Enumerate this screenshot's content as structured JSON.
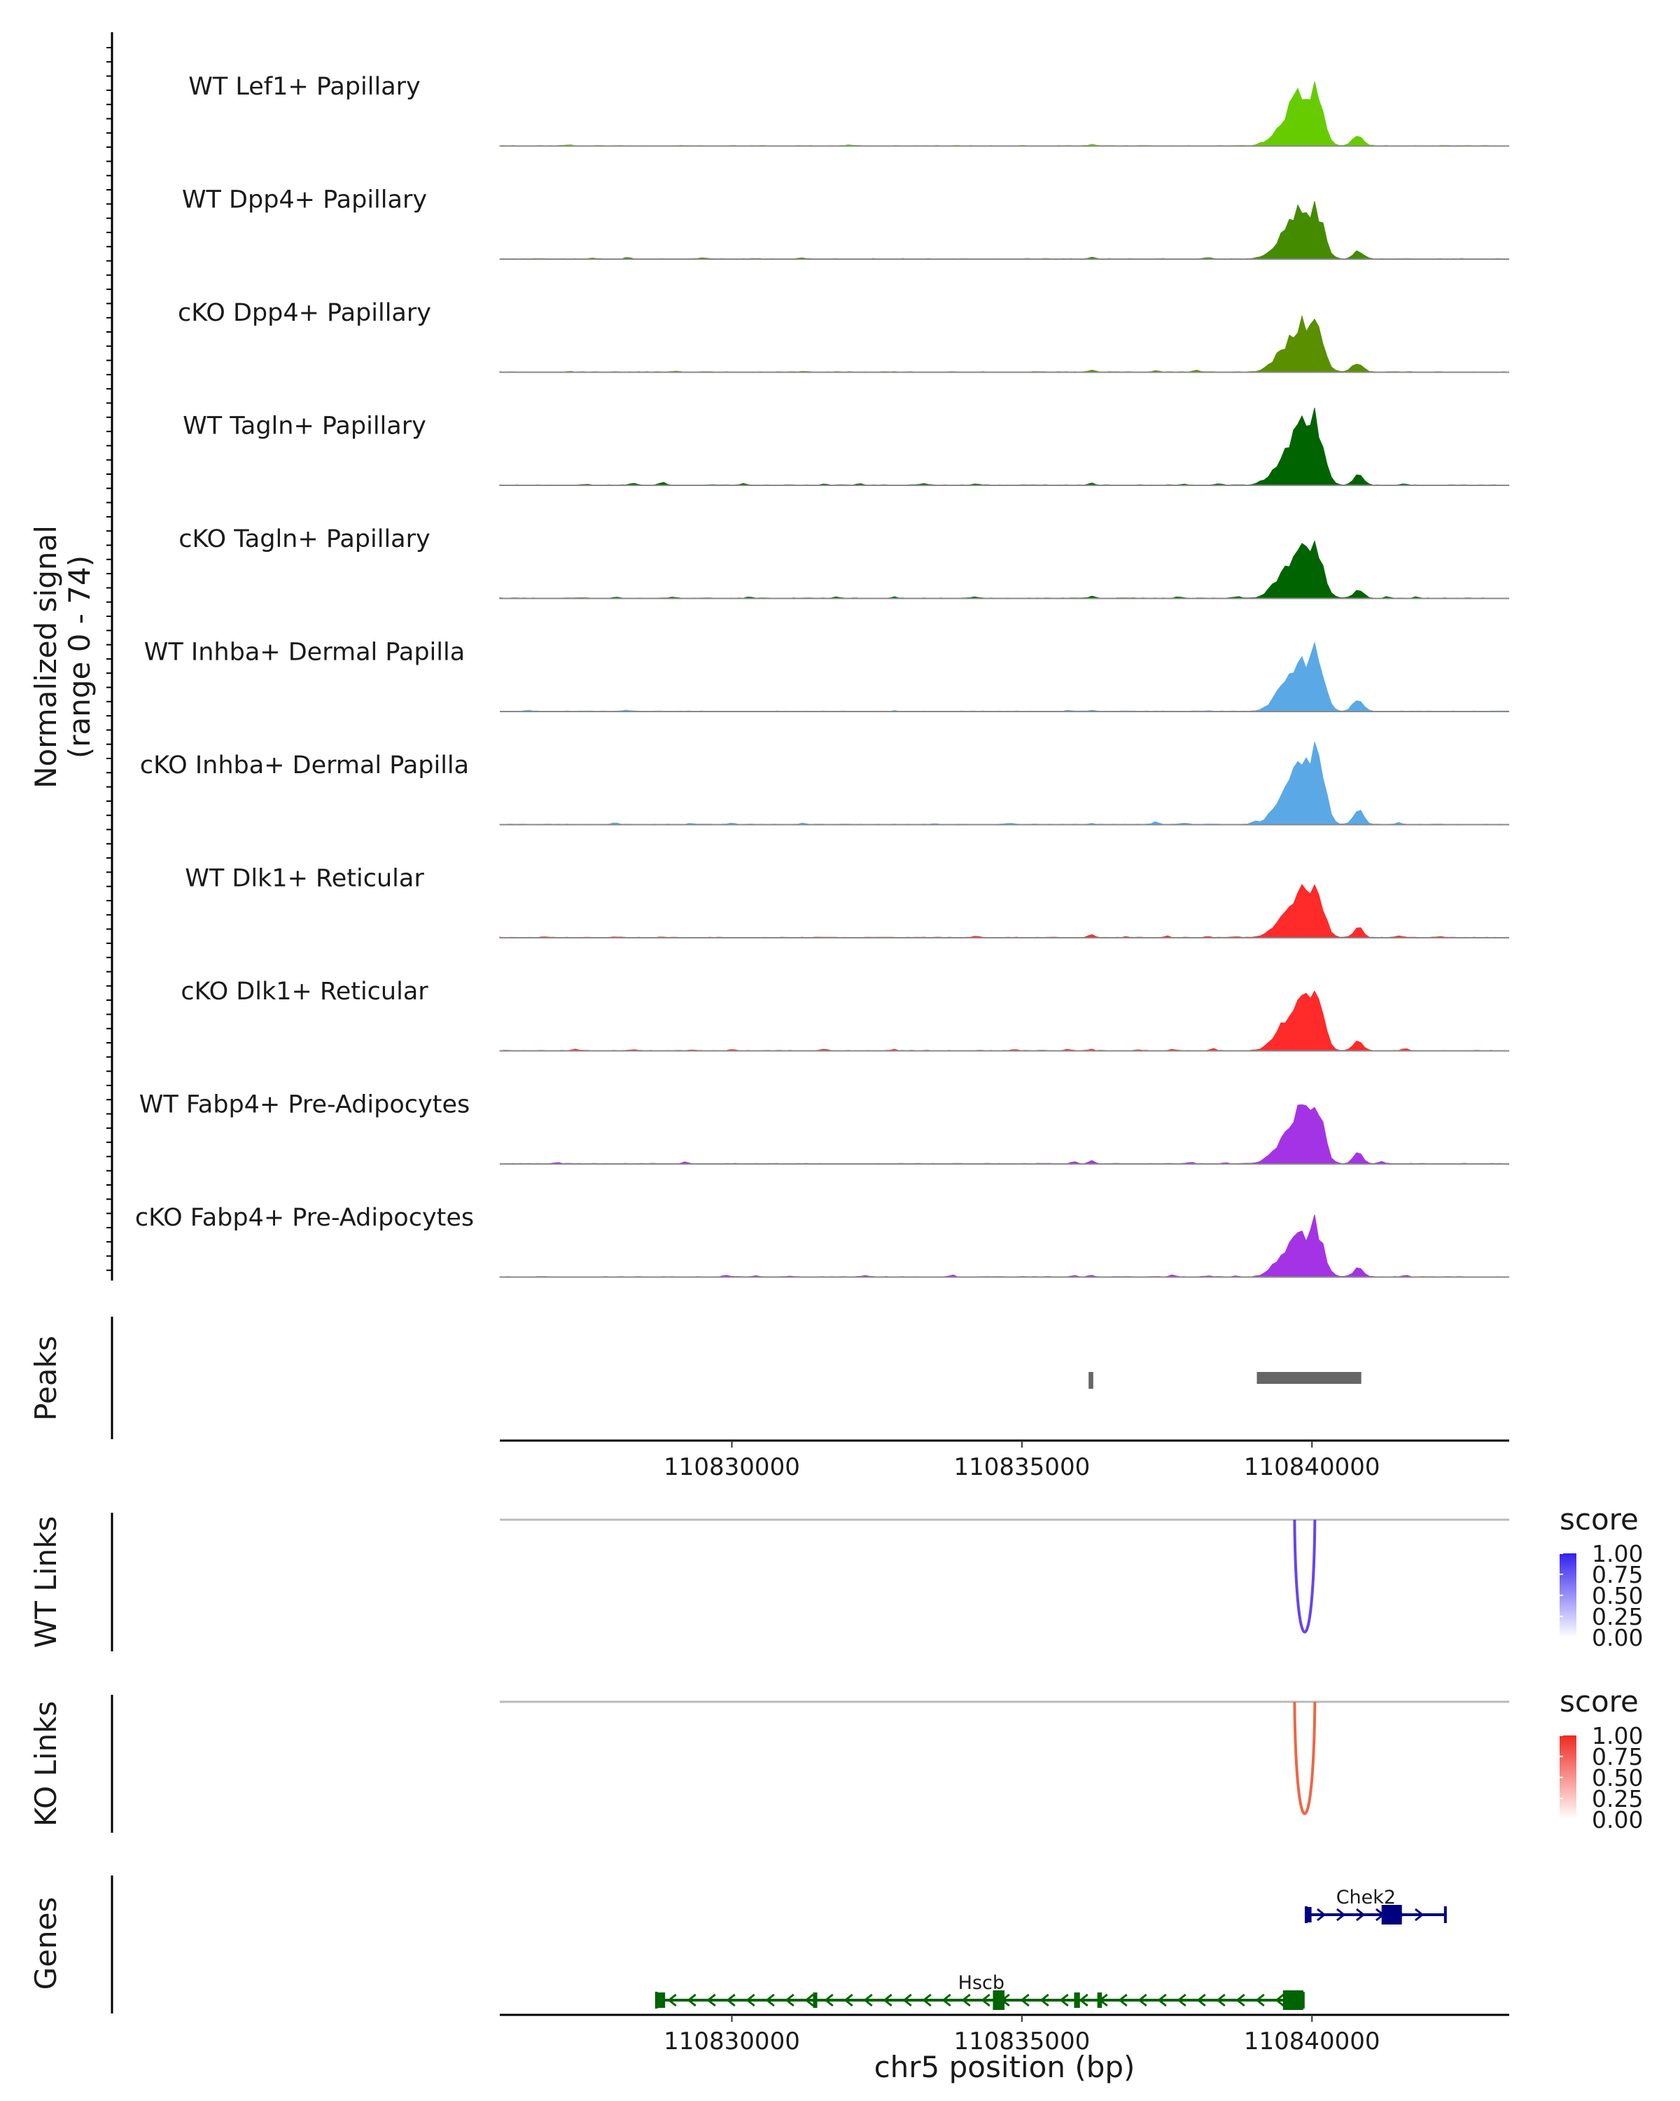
{
  "chart_data": {
    "type": "area",
    "genome_region": {
      "chromosome": "chr5",
      "xlim": [
        110826000,
        110843400
      ]
    },
    "coverage_ylabel": "Normalized signal",
    "coverage_ylabel_range": "(range 0 - 74)",
    "coverage_yrange": [
      0,
      74
    ],
    "x_ticks": [
      110830000,
      110835000,
      110840000
    ],
    "x_tick_labels": [
      "110830000",
      "110835000",
      "110840000"
    ],
    "xlabel": "chr5 position (bp)",
    "tracks": [
      {
        "name": "WT Lef1+ Papillary",
        "color": "#66cc00",
        "noise": [
          [
            110827200,
            1.5
          ],
          [
            110832000,
            1.2
          ],
          [
            110836200,
            2.5
          ],
          [
            110839100,
            1.5
          ],
          [
            110840700,
            3
          ]
        ],
        "peak_scale": 1.0,
        "secondary": 0.45
      },
      {
        "name": "WT Dpp4+ Papillary",
        "color": "#458b00",
        "noise": [
          [
            110827600,
            2
          ],
          [
            110828200,
            2
          ],
          [
            110829500,
            2
          ],
          [
            110831200,
            1.5
          ],
          [
            110836200,
            3
          ],
          [
            110838200,
            2
          ]
        ],
        "peak_scale": 0.93,
        "secondary": 0.4
      },
      {
        "name": "cKO Dpp4+ Papillary",
        "color": "#5a8f00",
        "noise": [
          [
            110827200,
            1.5
          ],
          [
            110829000,
            1.5
          ],
          [
            110831200,
            1.5
          ],
          [
            110836200,
            3
          ],
          [
            110837300,
            2
          ],
          [
            110838000,
            2.5
          ],
          [
            110840700,
            4
          ]
        ],
        "peak_scale": 0.9,
        "secondary": 0.45
      },
      {
        "name": "WT Tagln+ Papillary",
        "color": "#006400",
        "noise": [
          [
            110827500,
            2
          ],
          [
            110828300,
            3
          ],
          [
            110828800,
            4
          ],
          [
            110830200,
            2.5
          ],
          [
            110831600,
            2.5
          ],
          [
            110832200,
            2.5
          ],
          [
            110833300,
            2.5
          ],
          [
            110834200,
            2
          ],
          [
            110836200,
            3
          ],
          [
            110837800,
            2
          ],
          [
            110838400,
            2.5
          ],
          [
            110839100,
            3
          ],
          [
            110841600,
            2.5
          ]
        ],
        "peak_scale": 1.1,
        "secondary": 0.4
      },
      {
        "name": "cKO Tagln+ Papillary",
        "color": "#006400",
        "noise": [
          [
            110828000,
            2
          ],
          [
            110829000,
            2
          ],
          [
            110830300,
            2
          ],
          [
            110831800,
            2
          ],
          [
            110832800,
            2
          ],
          [
            110834200,
            2
          ],
          [
            110836200,
            4
          ],
          [
            110837700,
            2.5
          ],
          [
            110838700,
            3
          ],
          [
            110839300,
            5
          ],
          [
            110841300,
            3
          ],
          [
            110841800,
            2.5
          ]
        ],
        "peak_scale": 0.95,
        "secondary": 0.4
      },
      {
        "name": "WT Inhba+ Dermal Papilla",
        "color": "#5aa9e6",
        "noise": [
          [
            110826500,
            1.5
          ],
          [
            110828200,
            1.5
          ],
          [
            110832800,
            1
          ],
          [
            110835800,
            1.5
          ],
          [
            110836200,
            2
          ],
          [
            110838200,
            1.5
          ],
          [
            110840700,
            4
          ]
        ],
        "peak_scale": 1.0,
        "secondary": 0.6
      },
      {
        "name": "cKO Inhba+ Dermal Papilla",
        "color": "#5aa9e6",
        "noise": [
          [
            110828000,
            2.5
          ],
          [
            110829300,
            2
          ],
          [
            110830000,
            2
          ],
          [
            110831200,
            2.5
          ],
          [
            110833500,
            2
          ],
          [
            110834800,
            2.5
          ],
          [
            110836200,
            2
          ],
          [
            110837300,
            3.5
          ],
          [
            110837800,
            3
          ],
          [
            110839000,
            5
          ],
          [
            110840800,
            4
          ],
          [
            110841500,
            3
          ]
        ],
        "peak_scale": 1.2,
        "secondary": 0.9
      },
      {
        "name": "WT Dlk1+ Reticular",
        "color": "#ff2a2a",
        "noise": [
          [
            110826800,
            1.5
          ],
          [
            110828000,
            1.5
          ],
          [
            110828800,
            1.5
          ],
          [
            110834200,
            2.5
          ],
          [
            110836200,
            5
          ],
          [
            110836800,
            2
          ],
          [
            110837500,
            2
          ],
          [
            110838200,
            2
          ],
          [
            110838700,
            2
          ],
          [
            110840800,
            4
          ],
          [
            110841500,
            3
          ],
          [
            110842200,
            2
          ]
        ],
        "peak_scale": 0.9,
        "secondary": 0.4
      },
      {
        "name": "cKO Dlk1+ Reticular",
        "color": "#ff2a2a",
        "noise": [
          [
            110827300,
            2.5
          ],
          [
            110828300,
            2
          ],
          [
            110829300,
            1.5
          ],
          [
            110830000,
            1.5
          ],
          [
            110831600,
            2
          ],
          [
            110832800,
            1.5
          ],
          [
            110834900,
            2
          ],
          [
            110835800,
            2.5
          ],
          [
            110836200,
            3
          ],
          [
            110837000,
            2
          ],
          [
            110837600,
            2.5
          ],
          [
            110838300,
            3
          ],
          [
            110840800,
            3.5
          ],
          [
            110841600,
            3
          ]
        ],
        "peak_scale": 1.0,
        "secondary": 0.35
      },
      {
        "name": "WT Fabp4+ Pre-Adipocytes",
        "color": "#a533e6",
        "noise": [
          [
            110827000,
            2
          ],
          [
            110829200,
            2.5
          ],
          [
            110835900,
            3
          ],
          [
            110836200,
            5
          ],
          [
            110837900,
            2.5
          ],
          [
            110838500,
            2
          ],
          [
            110839200,
            2.5
          ],
          [
            110840800,
            4
          ],
          [
            110841200,
            3.5
          ]
        ],
        "peak_scale": 1.0,
        "secondary": 0.5
      },
      {
        "name": "cKO Fabp4+ Pre-Adipocytes",
        "color": "#a533e6",
        "noise": [
          [
            110829900,
            2.5
          ],
          [
            110830400,
            2
          ],
          [
            110831000,
            2
          ],
          [
            110832300,
            2
          ],
          [
            110833800,
            2.5
          ],
          [
            110835900,
            2.5
          ],
          [
            110836200,
            3.5
          ],
          [
            110837600,
            2.5
          ],
          [
            110838200,
            2
          ],
          [
            110838700,
            2
          ],
          [
            110840800,
            3.5
          ],
          [
            110841600,
            2.5
          ]
        ],
        "peak_scale": 0.85,
        "secondary": 0.45
      }
    ],
    "peaks": {
      "label": "Peaks",
      "regions": [
        [
          110836150,
          110836230
        ],
        [
          110839050,
          110840850
        ]
      ],
      "color": "#666666"
    },
    "link_tracks": [
      {
        "name": "WT Links",
        "color": "#6644ee",
        "links": [
          {
            "start": 110839700,
            "end": 110840050,
            "score": 0.85
          }
        ],
        "legend_title": "score",
        "legend_ticks": [
          "1.00",
          "0.75",
          "0.50",
          "0.25",
          "0.00"
        ],
        "legend_high": "#3322ee"
      },
      {
        "name": "KO Links",
        "color": "#ee6644",
        "links": [
          {
            "start": 110839700,
            "end": 110840050,
            "score": 0.8
          }
        ],
        "legend_title": "score",
        "legend_ticks": [
          "1.00",
          "0.75",
          "0.50",
          "0.25",
          "0.00"
        ],
        "legend_high": "#ee2a22"
      }
    ],
    "genes_label": "Genes",
    "genes": [
      {
        "name": "Chek2",
        "start": 110839900,
        "end": 110842300,
        "strand": "+",
        "color": "#000080",
        "exons": [
          [
            110839920,
            110839980
          ],
          [
            110841200,
            110841550
          ]
        ]
      },
      {
        "name": "Hscb",
        "start": 110828700,
        "end": 110839850,
        "strand": "-",
        "color": "#006400",
        "exons": [
          [
            110828700,
            110828850
          ],
          [
            110831400,
            110831460
          ],
          [
            110834500,
            110834700
          ],
          [
            110835900,
            110836000
          ],
          [
            110836300,
            110836380
          ],
          [
            110839500,
            110839850
          ]
        ]
      }
    ]
  }
}
